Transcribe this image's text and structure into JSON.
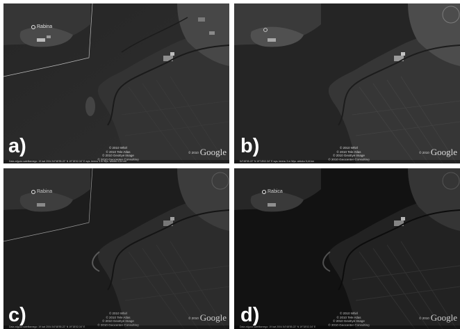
{
  "panels": [
    {
      "label": "a)",
      "place_name": "Rabina",
      "credits": [
        "© 2010 Whirl",
        "© 2010 Tele Atlas",
        "© 2010 GeoEye Image",
        "© 2010 Geocenter Consulting"
      ],
      "brand": "Google",
      "brand_prefix": "© 2010",
      "status_text": "Data zdjęcia satelitarnego: 19 kwi 2004      54°48'55.22\" N  19°18'02.34\" E  wys. terenu 3 m      Wys. widoku 5,44 km"
    },
    {
      "label": "b)",
      "place_name": "",
      "credits": [
        "© 2010 Whirl",
        "© 2010 Tele Atlas",
        "© 2010 GeoEye Image",
        "© 2010 Geocenter Consulting"
      ],
      "brand": "Google",
      "brand_prefix": "© 2010",
      "status_text": "54°48'55.22\" N  19°18'02.34\" E  wys. terenu 3 m      Wys. widoku 5,44 km"
    },
    {
      "label": "c)",
      "place_name": "Rabina",
      "credits": [
        "© 2010 Whirl",
        "© 2010 Tele Atlas",
        "© 2010 GeoEye Image",
        "© 2010 Geocenter Consulting"
      ],
      "brand": "Google",
      "brand_prefix": "© 2010",
      "status_text": "Data zdjęcia satelitarnego: 19 kwi 2004      54°48'55.22\" N  19°18'02.34\" E"
    },
    {
      "label": "d)",
      "place_name": "Rabica",
      "credits": [
        "© 2010 Whirl",
        "© 2010 Tele Atlas",
        "© 2010 GeoEye Image",
        "© 2010 Geocenter Consulting"
      ],
      "brand": "Google",
      "brand_prefix": "© 2010",
      "status_text": "Data zdjęcia satelitarnego: 19 kwi 2004      54°48'55.22\" N  19°18'02.34\" E"
    }
  ],
  "colors": {
    "label": "#ffffff",
    "map_text": "#e4e4e4",
    "border_line": "#bdbdbd"
  }
}
